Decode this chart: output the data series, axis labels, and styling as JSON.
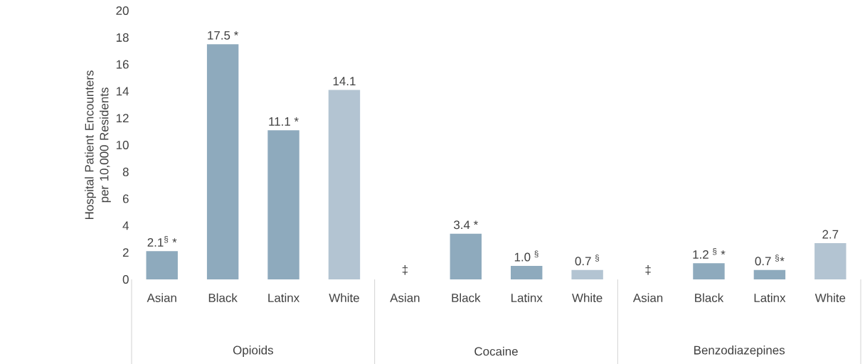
{
  "chart_data": {
    "type": "bar",
    "ylabel": "Hospital Patient Encounters per 10,000 Residents",
    "categories": [
      "Asian",
      "Black",
      "Latinx",
      "White",
      "Asian",
      "Black",
      "Latinx",
      "White",
      "Asian",
      "Black",
      "Latinx",
      "White"
    ],
    "values": [
      2.1,
      17.5,
      11.1,
      14.1,
      null,
      3.4,
      1.0,
      0.7,
      null,
      1.2,
      0.7,
      2.7
    ],
    "colors": [
      "#8eaabd",
      "#8eaabd",
      "#8eaabd",
      "#b3c4d2",
      "#8eaabd",
      "#8eaabd",
      "#8eaabd",
      "#b3c4d2",
      "#8eaabd",
      "#8eaabd",
      "#8eaabd",
      "#b3c4d2"
    ],
    "value_labels": [
      "2.1$^{§}$ *",
      "17.5 *",
      "11.1 *",
      "14.1",
      "‡",
      "3.4 *",
      "1.0 $^{§}$",
      "0.7 $^{§}$",
      "‡",
      "1.2 $^{§}$ *",
      "0.7 $^{§}$*",
      "2.7"
    ],
    "annotations": [
      "Opioids",
      "Cocaine",
      "Benzodiazepines"
    ],
    "ylim": [
      0,
      20
    ],
    "yticks": [
      0,
      2,
      4,
      6,
      8,
      10,
      12,
      14,
      16,
      18,
      20
    ]
  }
}
